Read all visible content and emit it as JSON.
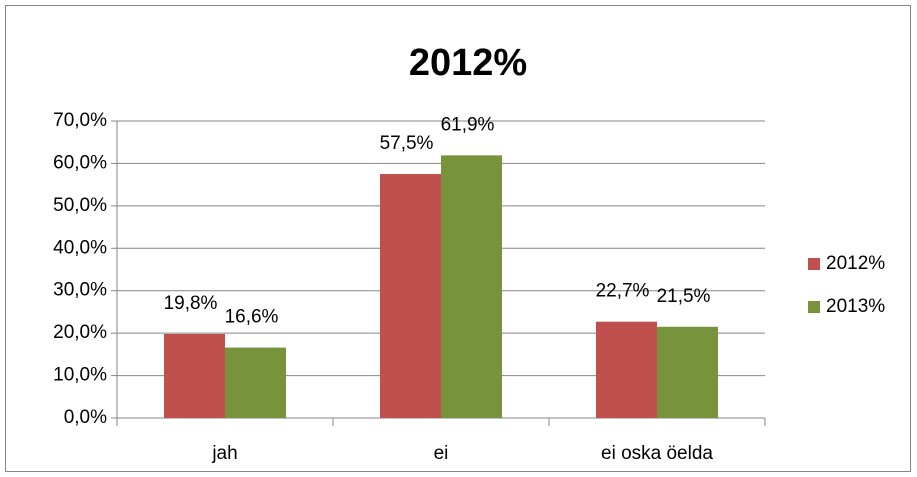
{
  "chart_data": {
    "type": "bar",
    "title": "2012%",
    "categories": [
      "jah",
      "ei",
      "ei oska öelda"
    ],
    "series": [
      {
        "name": "2012%",
        "color": "#c0504d",
        "values": [
          19.8,
          57.5,
          22.7
        ],
        "value_labels": [
          "19,8%",
          "57,5%",
          "22,7%"
        ]
      },
      {
        "name": "2013%",
        "color": "#77933c",
        "values": [
          16.6,
          61.9,
          21.5
        ],
        "value_labels": [
          "16,6%",
          "61,9%",
          "21,5%"
        ]
      }
    ],
    "ylim": [
      0,
      70
    ],
    "yticks": [
      {
        "value": 0,
        "label": "0,0%"
      },
      {
        "value": 10,
        "label": "10,0%"
      },
      {
        "value": 20,
        "label": "20,0%"
      },
      {
        "value": 30,
        "label": "30,0%"
      },
      {
        "value": 40,
        "label": "40,0%"
      },
      {
        "value": 50,
        "label": "50,0%"
      },
      {
        "value": 60,
        "label": "60,0%"
      },
      {
        "value": 70,
        "label": "70,0%"
      }
    ],
    "grid": true,
    "legend": "right"
  }
}
